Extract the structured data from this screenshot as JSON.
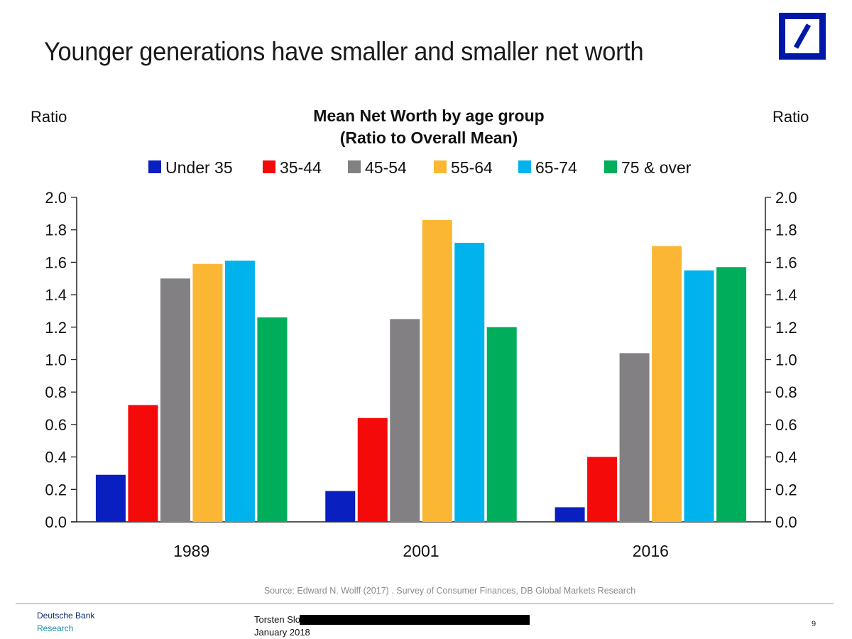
{
  "slide": {
    "title": "Younger generations have smaller and smaller net worth",
    "logo": "deutsche-bank-logo",
    "source": "Source: Edward N. Wolff (2017) . Survey of Consumer Finances, DB Global Markets Research",
    "footer": {
      "brand_line1": "Deutsche Bank",
      "brand_line2": "Research",
      "author": "Torsten Slok,",
      "date": "January 2018",
      "page_number": "9"
    }
  },
  "chart_data": {
    "type": "bar",
    "title": "Mean Net Worth by age group",
    "subtitle": "(Ratio to Overall Mean)",
    "ylabel_left": "Ratio",
    "ylabel_right": "Ratio",
    "xlabel": "",
    "categories": [
      "1989",
      "2001",
      "2016"
    ],
    "ylim": [
      0,
      2.0
    ],
    "yticks": [
      "0.0",
      "0.2",
      "0.4",
      "0.6",
      "0.8",
      "1.0",
      "1.2",
      "1.4",
      "1.6",
      "1.8",
      "2.0"
    ],
    "grid": false,
    "legend_position": "top-center",
    "series": [
      {
        "name": "Under 35",
        "color": "#0a1fc0",
        "values": [
          0.29,
          0.19,
          0.09
        ]
      },
      {
        "name": "35-44",
        "color": "#f50a0a",
        "values": [
          0.72,
          0.64,
          0.4
        ]
      },
      {
        "name": "45-54",
        "color": "#828083",
        "values": [
          1.5,
          1.25,
          1.04
        ]
      },
      {
        "name": "55-64",
        "color": "#fbb733",
        "values": [
          1.59,
          1.86,
          1.7
        ]
      },
      {
        "name": "65-74",
        "color": "#00b3ec",
        "values": [
          1.61,
          1.72,
          1.55
        ]
      },
      {
        "name": "75 & over",
        "color": "#00ad5a",
        "values": [
          1.26,
          1.2,
          1.57
        ]
      }
    ]
  }
}
